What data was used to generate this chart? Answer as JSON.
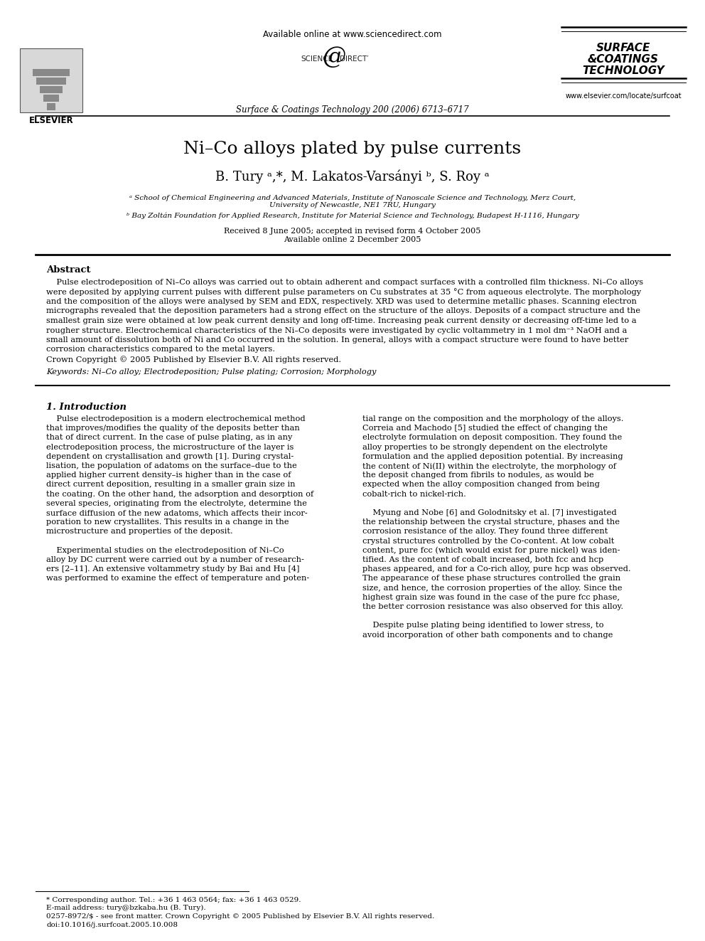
{
  "title": "Ni–Co alloys plated by pulse currents",
  "authors": "B. Tury ᵃ,*, M. Lakatos-Varsányi ᵇ, S. Roy ᵃ",
  "affil_a": "ᵃ School of Chemical Engineering and Advanced Materials, Institute of Nanoscale Science and Technology, Merz Court,\nUniversity of Newcastle, NE1 7RU, Hungary",
  "affil_b": "ᵇ Bay Zoltán Foundation for Applied Research, Institute for Material Science and Technology, Budapest H-1116, Hungary",
  "received": "Received 8 June 2005; accepted in revised form 4 October 2005\nAvailable online 2 December 2005",
  "journal_header": "Surface & Coatings Technology 200 (2006) 6713–6717",
  "available_online": "Available online at www.sciencedirect.com",
  "website": "www.elsevier.com/locate/surfcoat",
  "abstract_title": "Abstract",
  "abstract_lines": [
    "    Pulse electrodeposition of Ni–Co alloys was carried out to obtain adherent and compact surfaces with a controlled film thickness. Ni–Co alloys",
    "were deposited by applying current pulses with different pulse parameters on Cu substrates at 35 °C from aqueous electrolyte. The morphology",
    "and the composition of the alloys were analysed by SEM and EDX, respectively. XRD was used to determine metallic phases. Scanning electron",
    "micrographs revealed that the deposition parameters had a strong effect on the structure of the alloys. Deposits of a compact structure and the",
    "smallest grain size were obtained at low peak current density and long off-time. Increasing peak current density or decreasing off-time led to a",
    "rougher structure. Electrochemical characteristics of the Ni–Co deposits were investigated by cyclic voltammetry in 1 mol dm⁻³ NaOH and a",
    "small amount of dissolution both of Ni and Co occurred in the solution. In general, alloys with a compact structure were found to have better",
    "corrosion characteristics compared to the metal layers."
  ],
  "copyright": "Crown Copyright © 2005 Published by Elsevier B.V. All rights reserved.",
  "keywords": "Keywords: Ni–Co alloy; Electrodeposition; Pulse plating; Corrosion; Morphology",
  "section1_title": "1. Introduction",
  "col1_lines": [
    "    Pulse electrodeposition is a modern electrochemical method",
    "that improves/modifies the quality of the deposits better than",
    "that of direct current. In the case of pulse plating, as in any",
    "electrodeposition process, the microstructure of the layer is",
    "dependent on crystallisation and growth [1]. During crystal-",
    "lisation, the population of adatoms on the surface–due to the",
    "applied higher current density–is higher than in the case of",
    "direct current deposition, resulting in a smaller grain size in",
    "the coating. On the other hand, the adsorption and desorption of",
    "several species, originating from the electrolyte, determine the",
    "surface diffusion of the new adatoms, which affects their incor-",
    "poration to new crystallites. This results in a change in the",
    "microstructure and properties of the deposit.",
    "",
    "    Experimental studies on the electrodeposition of Ni–Co",
    "alloy by DC current were carried out by a number of research-",
    "ers [2–11]. An extensive voltammetry study by Bai and Hu [4]",
    "was performed to examine the effect of temperature and poten-"
  ],
  "col2_lines": [
    "tial range on the composition and the morphology of the alloys.",
    "Correia and Machodo [5] studied the effect of changing the",
    "electrolyte formulation on deposit composition. They found the",
    "alloy properties to be strongly dependent on the electrolyte",
    "formulation and the applied deposition potential. By increasing",
    "the content of Ni(II) within the electrolyte, the morphology of",
    "the deposit changed from fibrils to nodules, as would be",
    "expected when the alloy composition changed from being",
    "cobalt-rich to nickel-rich.",
    "",
    "    Myung and Nobe [6] and Golodnitsky et al. [7] investigated",
    "the relationship between the crystal structure, phases and the",
    "corrosion resistance of the alloy. They found three different",
    "crystal structures controlled by the Co-content. At low cobalt",
    "content, pure fcc (which would exist for pure nickel) was iden-",
    "tified. As the content of cobalt increased, both fcc and hcp",
    "phases appeared, and for a Co-rich alloy, pure hcp was observed.",
    "The appearance of these phase structures controlled the grain",
    "size, and hence, the corrosion properties of the alloy. Since the",
    "highest grain size was found in the case of the pure fcc phase,",
    "the better corrosion resistance was also observed for this alloy.",
    "",
    "    Despite pulse plating being identified to lower stress, to",
    "avoid incorporation of other bath components and to change"
  ],
  "footnote_line1": "* Corresponding author. Tel.: +36 1 463 0564; fax: +36 1 463 0529.",
  "footnote_line2": "E-mail address: tury@bzkaba.hu (B. Tury).",
  "footer_line1": "0257-8972/$ - see front matter. Crown Copyright © 2005 Published by Elsevier B.V. All rights reserved.",
  "footer_line2": "doi:10.1016/j.surfcoat.2005.10.008",
  "background_color": "#ffffff"
}
